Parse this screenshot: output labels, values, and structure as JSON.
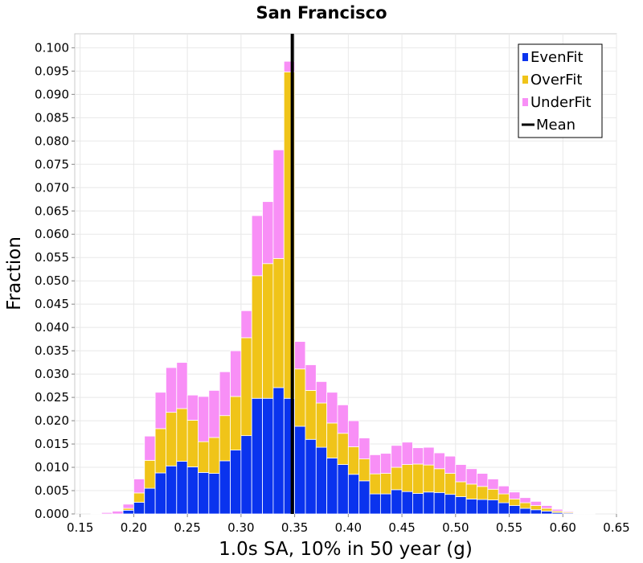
{
  "chart_data": {
    "type": "bar",
    "stacked": true,
    "title": "San Francisco",
    "xlabel": "1.0s SA, 10% in 50 year (g)",
    "ylabel": "Fraction",
    "xlim": [
      0.145,
      0.65
    ],
    "ylim": [
      0,
      0.103
    ],
    "bin_width": 0.01,
    "grid": true,
    "legend_position": "top-right",
    "x_ticks": [
      "0.15",
      "0.20",
      "0.25",
      "0.30",
      "0.35",
      "0.40",
      "0.45",
      "0.50",
      "0.55",
      "0.60",
      "0.65"
    ],
    "y_ticks": [
      "0.000",
      "0.005",
      "0.010",
      "0.015",
      "0.020",
      "0.025",
      "0.030",
      "0.035",
      "0.040",
      "0.045",
      "0.050",
      "0.055",
      "0.060",
      "0.065",
      "0.070",
      "0.075",
      "0.080",
      "0.085",
      "0.090",
      "0.095",
      "0.100"
    ],
    "bin_centers": [
      0.155,
      0.165,
      0.175,
      0.185,
      0.195,
      0.205,
      0.215,
      0.225,
      0.235,
      0.245,
      0.255,
      0.265,
      0.275,
      0.285,
      0.295,
      0.305,
      0.315,
      0.325,
      0.335,
      0.345,
      0.355,
      0.365,
      0.375,
      0.385,
      0.395,
      0.405,
      0.415,
      0.425,
      0.435,
      0.445,
      0.455,
      0.465,
      0.475,
      0.485,
      0.495,
      0.505,
      0.515,
      0.525,
      0.535,
      0.545,
      0.555,
      0.565,
      0.575,
      0.585,
      0.595,
      0.605,
      0.615,
      0.625,
      0.635
    ],
    "series": [
      {
        "name": "EvenFit",
        "color": "#0a33ee",
        "values": [
          0,
          0,
          0,
          0,
          0.0008,
          0.0025,
          0.0055,
          0.0088,
          0.0103,
          0.0113,
          0.0101,
          0.0089,
          0.0087,
          0.0114,
          0.0137,
          0.0168,
          0.0248,
          0.0248,
          0.0271,
          0.0248,
          0.0188,
          0.016,
          0.0143,
          0.012,
          0.0106,
          0.0085,
          0.0071,
          0.0043,
          0.0043,
          0.0052,
          0.0048,
          0.0044,
          0.0047,
          0.0046,
          0.0042,
          0.0037,
          0.0032,
          0.0031,
          0.003,
          0.0024,
          0.0018,
          0.0012,
          0.0009,
          0.0006,
          0.0003,
          0.0002,
          0.0001,
          0,
          0
        ]
      },
      {
        "name": "OverFit",
        "color": "#f0c419",
        "values": [
          0,
          0,
          0,
          0,
          0.0004,
          0.002,
          0.006,
          0.0095,
          0.0115,
          0.0113,
          0.01,
          0.0066,
          0.0077,
          0.0097,
          0.0115,
          0.021,
          0.0263,
          0.0289,
          0.0277,
          0.07,
          0.0123,
          0.0105,
          0.0095,
          0.0075,
          0.0067,
          0.0059,
          0.0047,
          0.0043,
          0.0044,
          0.0048,
          0.0058,
          0.0063,
          0.0058,
          0.0051,
          0.0045,
          0.0032,
          0.0032,
          0.0028,
          0.0023,
          0.0019,
          0.0014,
          0.0012,
          0.0009,
          0.0006,
          0.0003,
          0.0002,
          0.0001,
          0,
          0
        ]
      },
      {
        "name": "UnderFit",
        "color": "#f88ff6",
        "values": [
          0,
          0.0001,
          0.0003,
          0.0006,
          0.0009,
          0.003,
          0.0052,
          0.0078,
          0.0096,
          0.0099,
          0.0054,
          0.0097,
          0.0101,
          0.0094,
          0.0098,
          0.0058,
          0.0129,
          0.0133,
          0.0233,
          0.0023,
          0.0059,
          0.0055,
          0.0046,
          0.0066,
          0.0061,
          0.0056,
          0.0045,
          0.0041,
          0.0043,
          0.0047,
          0.0048,
          0.0035,
          0.0038,
          0.0034,
          0.0037,
          0.0037,
          0.0033,
          0.0028,
          0.0022,
          0.0017,
          0.0015,
          0.0011,
          0.0009,
          0.0006,
          0.0004,
          0.0002,
          0.0001,
          0.0001,
          0
        ]
      }
    ],
    "mean": {
      "name": "Mean",
      "value": 0.3478,
      "color": "#000000"
    }
  }
}
